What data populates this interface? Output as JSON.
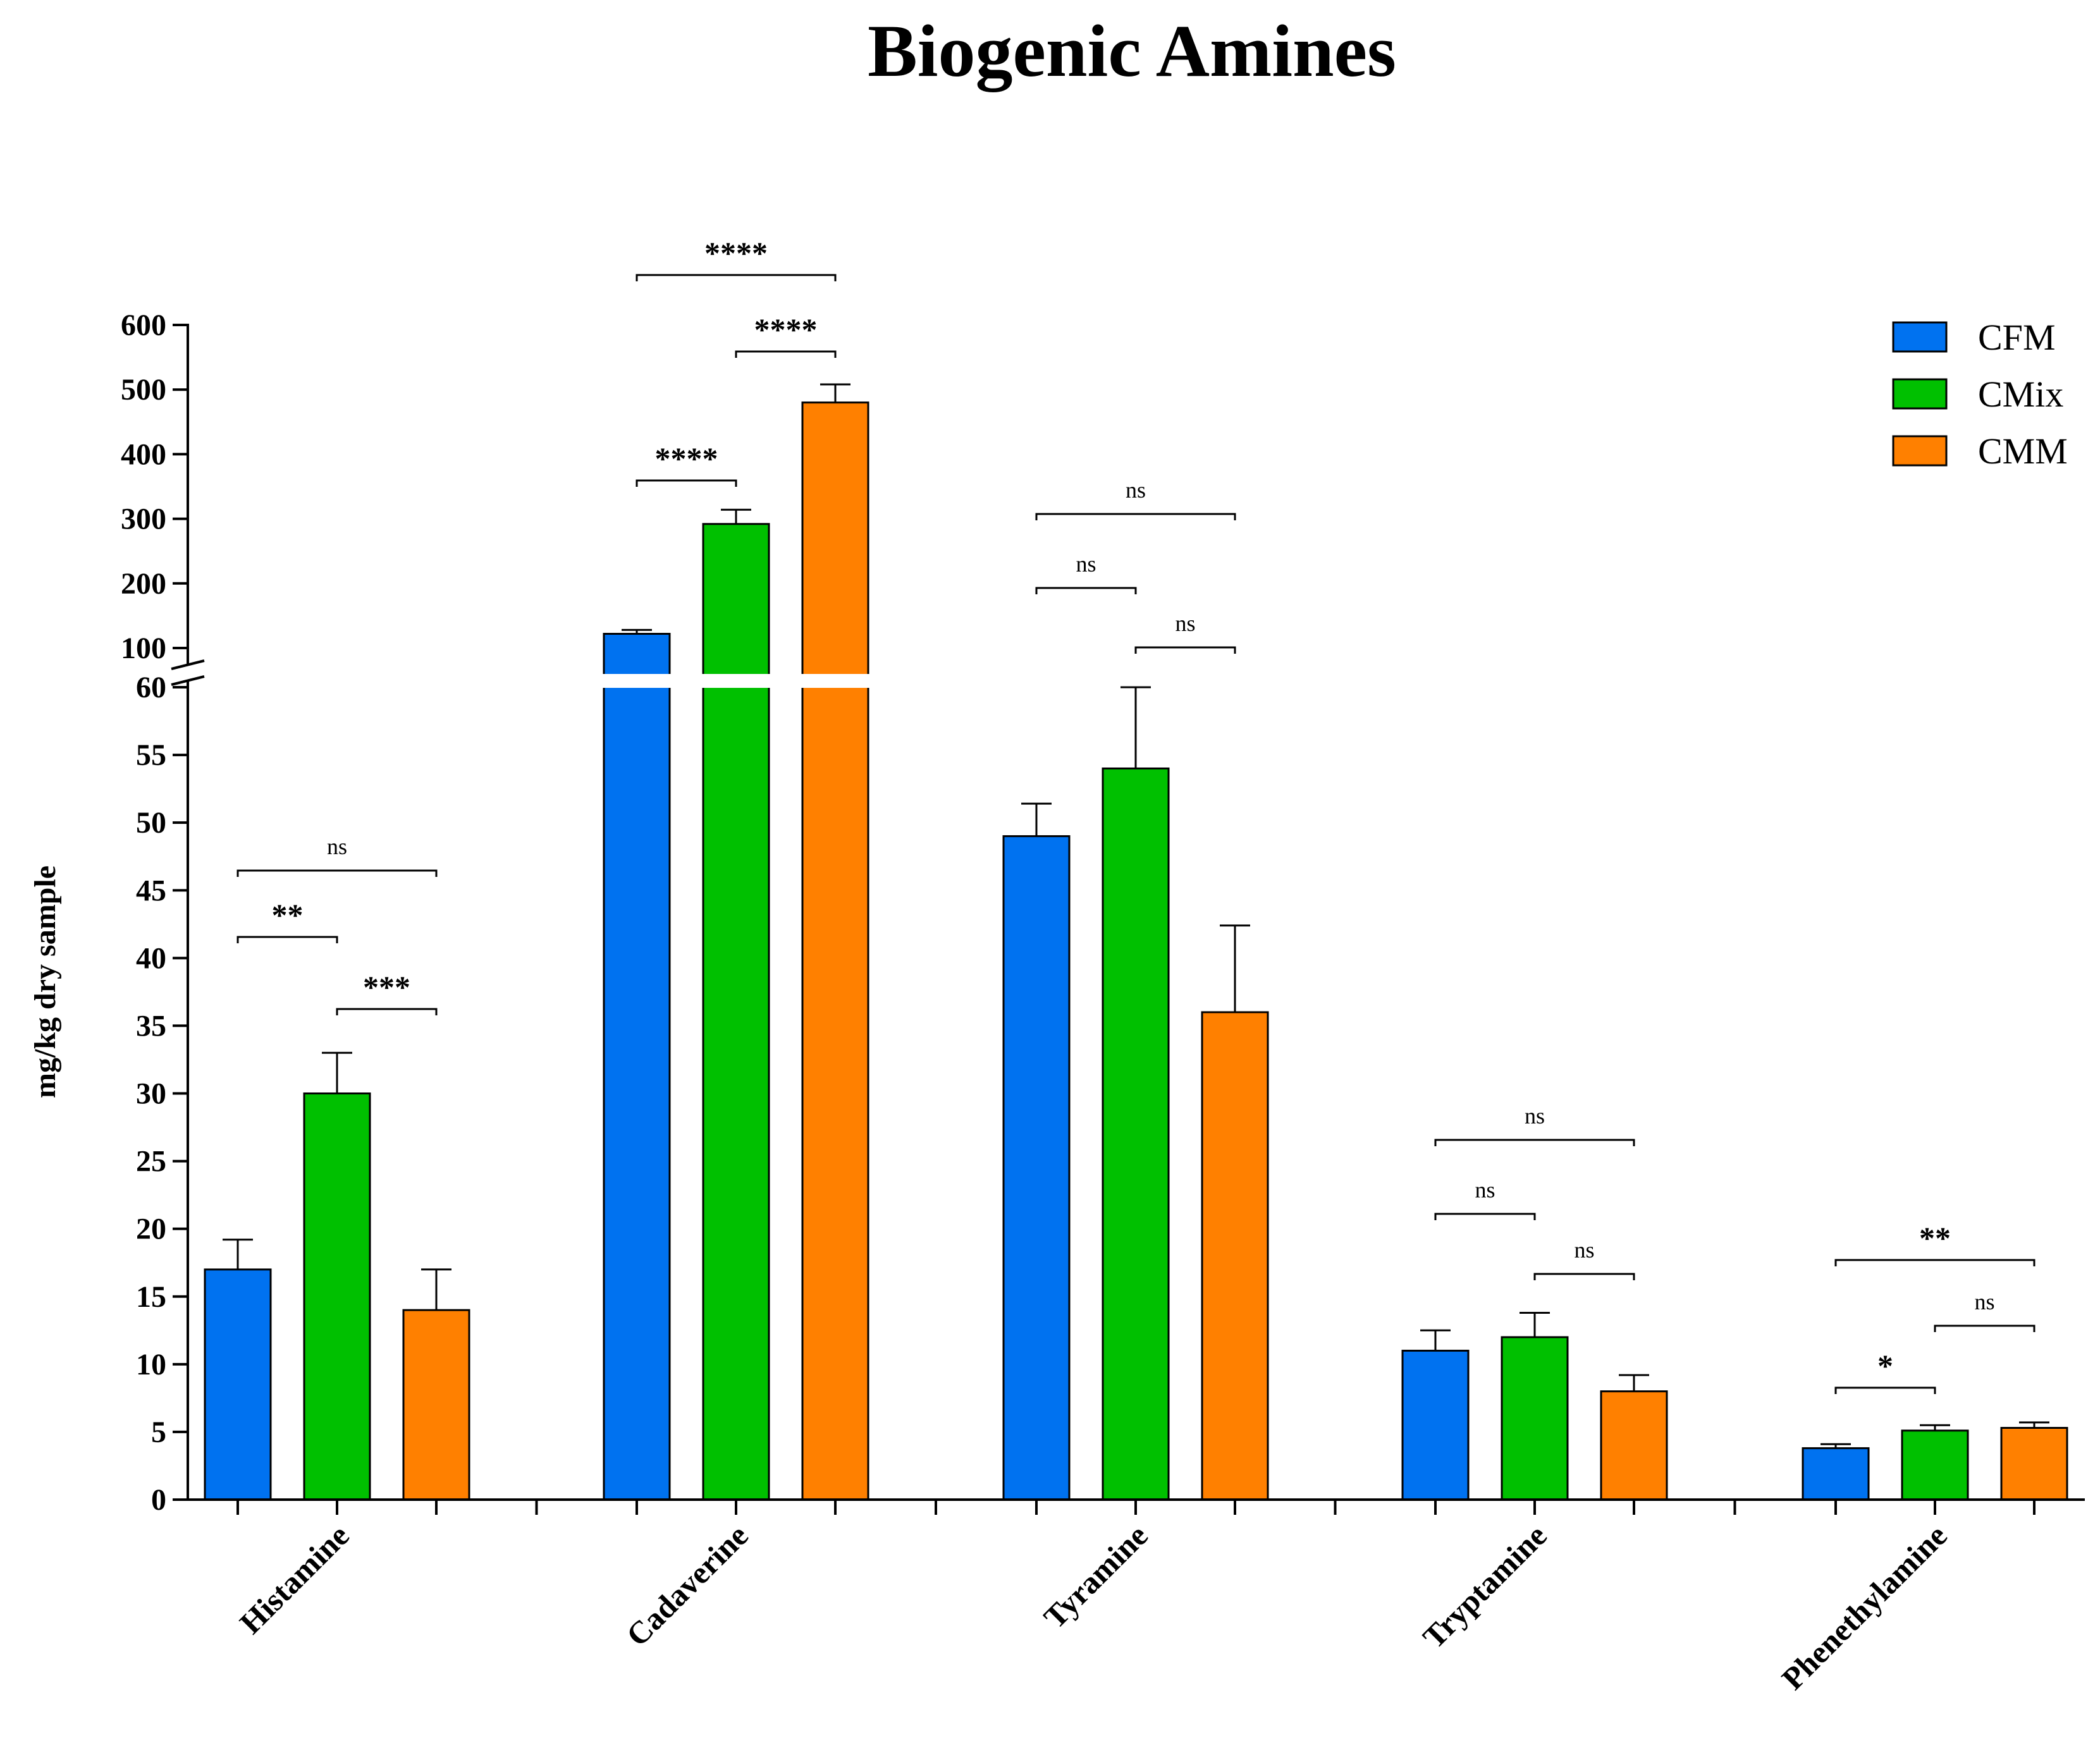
{
  "chart_data": {
    "type": "bar",
    "title": "Biogenic Amines",
    "xlabel": "",
    "ylabel": "mg/kg dry sample",
    "categories": [
      "Histamine",
      "Cadaverine",
      "Tyramine",
      "Tryptamine",
      "Phenethylamine"
    ],
    "series": [
      {
        "name": "CFM",
        "color": "#0072f0",
        "values": [
          17,
          122,
          49,
          11,
          3.8
        ],
        "errors": [
          2.2,
          6,
          2.4,
          1.5,
          0.3
        ]
      },
      {
        "name": "CMix",
        "color": "#00c000",
        "values": [
          30,
          292,
          54,
          12,
          5.1
        ],
        "errors": [
          3.0,
          22,
          6.0,
          1.8,
          0.4
        ]
      },
      {
        "name": "CMM",
        "color": "#ff8000",
        "values": [
          14,
          480,
          36,
          8,
          5.3
        ],
        "errors": [
          3.0,
          28,
          6.4,
          1.2,
          0.4
        ]
      }
    ],
    "axis_break": {
      "lower_range": [
        0,
        60
      ],
      "upper_range": [
        100,
        600
      ]
    },
    "y_ticks_lower": [
      0,
      5,
      10,
      15,
      20,
      25,
      30,
      35,
      40,
      45,
      50,
      55,
      60
    ],
    "y_ticks_upper": [
      100,
      200,
      300,
      400,
      500,
      600
    ],
    "legend_position": "top-right",
    "grid": false,
    "significance": [
      {
        "category": "Histamine",
        "from": 0,
        "to": 1,
        "label": "**",
        "level": 0
      },
      {
        "category": "Histamine",
        "from": 1,
        "to": 2,
        "label": "***",
        "level": 0
      },
      {
        "category": "Histamine",
        "from": 0,
        "to": 2,
        "label": "ns",
        "level": 1
      },
      {
        "category": "Cadaverine",
        "from": 0,
        "to": 1,
        "label": "****",
        "level": 0
      },
      {
        "category": "Cadaverine",
        "from": 1,
        "to": 2,
        "label": "****",
        "level": 1
      },
      {
        "category": "Cadaverine",
        "from": 0,
        "to": 2,
        "label": "****",
        "level": 2
      },
      {
        "category": "Tyramine",
        "from": 0,
        "to": 1,
        "label": "ns",
        "level": 1
      },
      {
        "category": "Tyramine",
        "from": 1,
        "to": 2,
        "label": "ns",
        "level": 0
      },
      {
        "category": "Tyramine",
        "from": 0,
        "to": 2,
        "label": "ns",
        "level": 2
      },
      {
        "category": "Tryptamine",
        "from": 0,
        "to": 1,
        "label": "ns",
        "level": 1
      },
      {
        "category": "Tryptamine",
        "from": 1,
        "to": 2,
        "label": "ns",
        "level": 0
      },
      {
        "category": "Tryptamine",
        "from": 0,
        "to": 2,
        "label": "ns",
        "level": 2
      },
      {
        "category": "Phenethylamine",
        "from": 0,
        "to": 1,
        "label": "*",
        "level": 0
      },
      {
        "category": "Phenethylamine",
        "from": 1,
        "to": 2,
        "label": "ns",
        "level": 1
      },
      {
        "category": "Phenethylamine",
        "from": 0,
        "to": 2,
        "label": "**",
        "level": 2
      }
    ]
  }
}
